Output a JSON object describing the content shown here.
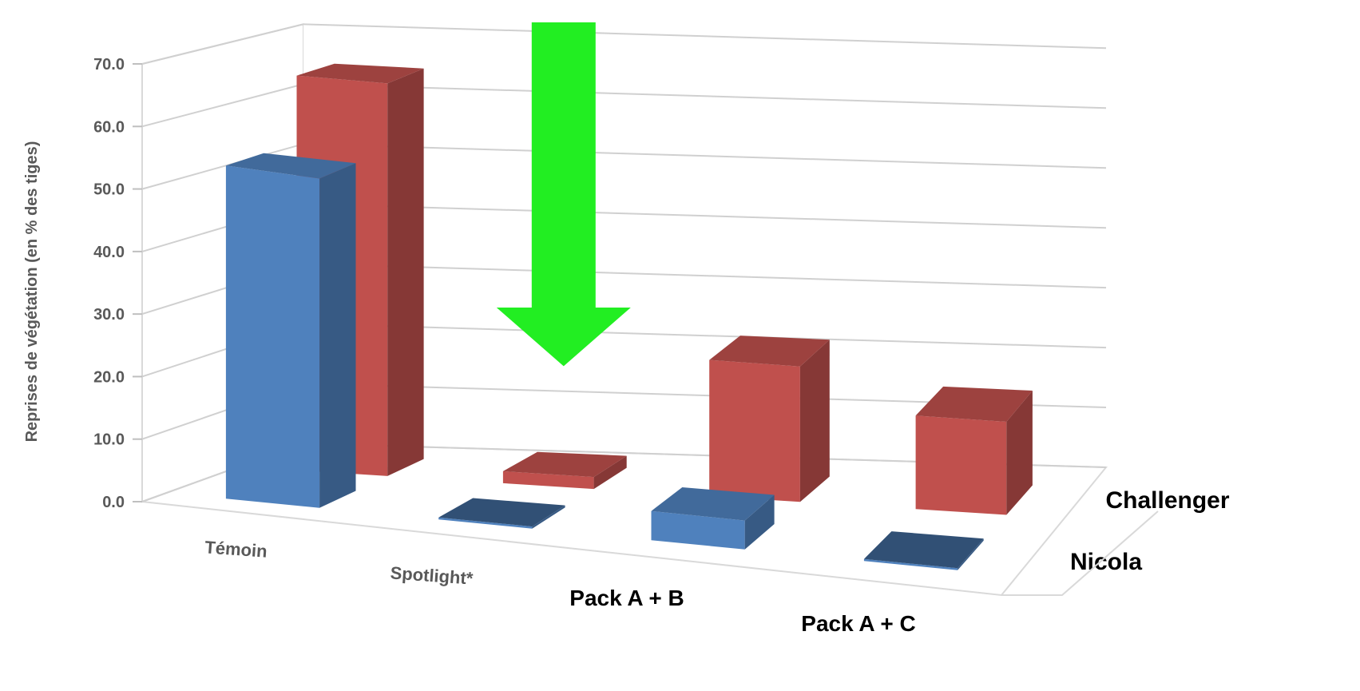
{
  "chart_data": {
    "type": "bar",
    "title": "",
    "ylabel": "Reprises de végétation  (en % des tiges)",
    "ylim": [
      0,
      70
    ],
    "ytick_labels": [
      "0.0",
      "10.0",
      "20.0",
      "30.0",
      "40.0",
      "50.0",
      "60.0",
      "70.0"
    ],
    "categories": [
      "Témoin",
      "Spotlight*",
      "Pack A + B",
      "Pack A + C"
    ],
    "series": [
      {
        "name": "Nicola",
        "color": "#4f81bd",
        "values": [
          54,
          0,
          5,
          0
        ]
      },
      {
        "name": "Challenger",
        "color": "#c0504d",
        "values": [
          65,
          2,
          23,
          16
        ]
      }
    ],
    "grid": true,
    "annotation": {
      "kind": "arrow-down",
      "color": "#22ee22",
      "target_category": "Spotlight*"
    }
  }
}
